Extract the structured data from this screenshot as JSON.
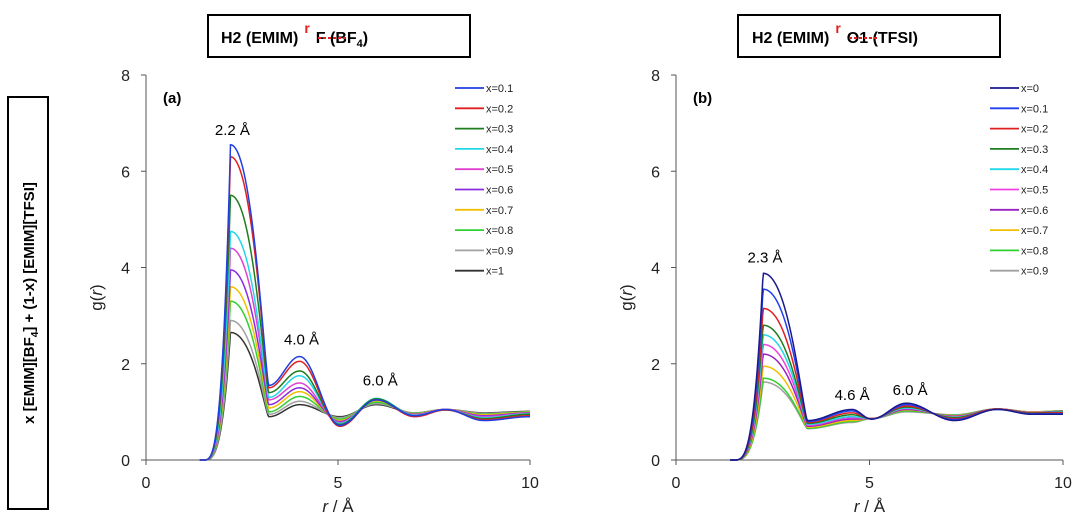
{
  "side_label": {
    "parts": [
      "x [EMIM][BF",
      "4",
      "] + (1-x) [EMIM][TFSI]"
    ]
  },
  "chart_data": [
    {
      "type": "line",
      "panel_label": "(a)",
      "title_parts": {
        "left": "H2 (EMIM)",
        "bond": "r",
        "right": "F (BF",
        "sub": "4",
        "close": ")"
      },
      "xlabel_parts": {
        "var": "r",
        "unit": " / Å"
      },
      "ylabel_parts": {
        "pre": "g(",
        "var": "r",
        "post": ")"
      },
      "xlim": [
        0,
        10
      ],
      "ylim": [
        0,
        8
      ],
      "xticks": [
        "0",
        "5",
        "10"
      ],
      "yticks": [
        "0",
        "2",
        "4",
        "6",
        "8"
      ],
      "legend_position": "top-right",
      "annotations": [
        {
          "text": "2.2 Å",
          "x": 2.25,
          "y": 6.75
        },
        {
          "text": "4.0 Å",
          "x": 4.05,
          "y": 2.4
        },
        {
          "text": "6.0 Å",
          "x": 6.1,
          "y": 1.55
        }
      ],
      "peaks": {
        "p1": 2.2,
        "m1": 3.2,
        "p2": 4.0,
        "m2": 5.05,
        "p3": 6.0,
        "m3": 7.0,
        "p4": 7.8,
        "m4": 8.8
      },
      "series": [
        {
          "name": "x=0.1",
          "color": "#1f3fe0",
          "values": {
            "p1": 6.55,
            "m1": 1.55,
            "p2": 2.15,
            "m2": 0.72,
            "p3": 1.25,
            "m3": 0.92,
            "p4": 1.05,
            "m4": 0.82,
            "end": 0.9
          }
        },
        {
          "name": "x=0.2",
          "color": "#e02020",
          "values": {
            "p1": 6.3,
            "m1": 1.5,
            "p2": 2.05,
            "m2": 0.7,
            "p3": 1.25,
            "m3": 0.9,
            "p4": 1.04,
            "m4": 0.84,
            "end": 0.92
          }
        },
        {
          "name": "x=0.3",
          "color": "#1e7d1e",
          "values": {
            "p1": 5.5,
            "m1": 1.4,
            "p2": 1.85,
            "m2": 0.74,
            "p3": 1.27,
            "m3": 0.92,
            "p4": 1.04,
            "m4": 0.86,
            "end": 0.95
          }
        },
        {
          "name": "x=0.4",
          "color": "#20d8e8",
          "values": {
            "p1": 4.75,
            "m1": 1.3,
            "p2": 1.75,
            "m2": 0.76,
            "p3": 1.28,
            "m3": 0.93,
            "p4": 1.04,
            "m4": 0.88,
            "end": 0.96
          }
        },
        {
          "name": "x=0.5",
          "color": "#e040d0",
          "values": {
            "p1": 4.4,
            "m1": 1.25,
            "p2": 1.6,
            "m2": 0.78,
            "p3": 1.27,
            "m3": 0.94,
            "p4": 1.05,
            "m4": 0.9,
            "end": 0.97
          }
        },
        {
          "name": "x=0.6",
          "color": "#8a2be2",
          "values": {
            "p1": 3.95,
            "m1": 1.15,
            "p2": 1.5,
            "m2": 0.8,
            "p3": 1.25,
            "m3": 0.95,
            "p4": 1.05,
            "m4": 0.92,
            "end": 0.98
          }
        },
        {
          "name": "x=0.7",
          "color": "#f0c000",
          "values": {
            "p1": 3.6,
            "m1": 1.08,
            "p2": 1.42,
            "m2": 0.82,
            "p3": 1.23,
            "m3": 0.96,
            "p4": 1.05,
            "m4": 0.94,
            "end": 0.99
          }
        },
        {
          "name": "x=0.8",
          "color": "#30d030",
          "values": {
            "p1": 3.3,
            "m1": 1.0,
            "p2": 1.32,
            "m2": 0.85,
            "p3": 1.2,
            "m3": 0.97,
            "p4": 1.05,
            "m4": 0.95,
            "end": 1.0
          }
        },
        {
          "name": "x=0.9",
          "color": "#a0a0a0",
          "values": {
            "p1": 2.9,
            "m1": 0.95,
            "p2": 1.22,
            "m2": 0.88,
            "p3": 1.17,
            "m3": 0.98,
            "p4": 1.05,
            "m4": 0.97,
            "end": 1.0
          }
        },
        {
          "name": "x=1",
          "color": "#333333",
          "values": {
            "p1": 2.65,
            "m1": 0.9,
            "p2": 1.15,
            "m2": 0.9,
            "p3": 1.15,
            "m3": 0.98,
            "p4": 1.05,
            "m4": 0.98,
            "end": 1.01
          }
        }
      ]
    },
    {
      "type": "line",
      "panel_label": "(b)",
      "title_parts": {
        "left": "H2 (EMIM)",
        "bond": "r",
        "right": "O1 (TFSI)",
        "sub": "",
        "close": ""
      },
      "xlabel_parts": {
        "var": "r",
        "unit": " / Å"
      },
      "ylabel_parts": {
        "pre": "g(",
        "var": "r",
        "post": ")"
      },
      "xlim": [
        0,
        10
      ],
      "ylim": [
        0,
        8
      ],
      "xticks": [
        "0",
        "5",
        "10"
      ],
      "yticks": [
        "0",
        "2",
        "4",
        "6",
        "8"
      ],
      "legend_position": "top-right",
      "annotations": [
        {
          "text": "2.3 Å",
          "x": 2.3,
          "y": 4.1
        },
        {
          "text": "4.6 Å",
          "x": 4.55,
          "y": 1.25
        },
        {
          "text": "6.0 Å",
          "x": 6.05,
          "y": 1.35
        }
      ],
      "peaks": {
        "p1": 2.25,
        "m1": 3.4,
        "p2": 4.55,
        "m2": 5.05,
        "p3": 5.95,
        "m3": 7.2,
        "p4": 8.3,
        "m4": 9.2
      },
      "series": [
        {
          "name": "x=0",
          "color": "#1a1a8c",
          "values": {
            "p1": 3.88,
            "m1": 0.82,
            "p2": 1.05,
            "m2": 0.85,
            "p3": 1.18,
            "m3": 0.82,
            "p4": 1.05,
            "m4": 0.95,
            "end": 0.95
          }
        },
        {
          "name": "x=0.1",
          "color": "#2040f0",
          "values": {
            "p1": 3.55,
            "m1": 0.8,
            "p2": 1.02,
            "m2": 0.85,
            "p3": 1.15,
            "m3": 0.84,
            "p4": 1.05,
            "m4": 0.96,
            "end": 0.96
          }
        },
        {
          "name": "x=0.2",
          "color": "#e02020",
          "values": {
            "p1": 3.15,
            "m1": 0.78,
            "p2": 0.98,
            "m2": 0.86,
            "p3": 1.12,
            "m3": 0.86,
            "p4": 1.06,
            "m4": 0.97,
            "end": 0.98
          }
        },
        {
          "name": "x=0.3",
          "color": "#1e7d1e",
          "values": {
            "p1": 2.8,
            "m1": 0.76,
            "p2": 0.94,
            "m2": 0.86,
            "p3": 1.1,
            "m3": 0.88,
            "p4": 1.06,
            "m4": 0.98,
            "end": 0.99
          }
        },
        {
          "name": "x=0.4",
          "color": "#20d8e8",
          "values": {
            "p1": 2.6,
            "m1": 0.74,
            "p2": 0.9,
            "m2": 0.86,
            "p3": 1.08,
            "m3": 0.89,
            "p4": 1.06,
            "m4": 0.98,
            "end": 1.0
          }
        },
        {
          "name": "x=0.5",
          "color": "#f040e0",
          "values": {
            "p1": 2.4,
            "m1": 0.72,
            "p2": 0.88,
            "m2": 0.86,
            "p3": 1.07,
            "m3": 0.9,
            "p4": 1.06,
            "m4": 0.99,
            "end": 1.0
          }
        },
        {
          "name": "x=0.6",
          "color": "#9a20c0",
          "values": {
            "p1": 2.2,
            "m1": 0.7,
            "p2": 0.85,
            "m2": 0.86,
            "p3": 1.05,
            "m3": 0.91,
            "p4": 1.06,
            "m4": 0.99,
            "end": 1.01
          }
        },
        {
          "name": "x=0.7",
          "color": "#f0c000",
          "values": {
            "p1": 1.95,
            "m1": 0.68,
            "p2": 0.82,
            "m2": 0.86,
            "p3": 1.04,
            "m3": 0.92,
            "p4": 1.06,
            "m4": 1.0,
            "end": 1.01
          }
        },
        {
          "name": "x=0.8",
          "color": "#30d030",
          "values": {
            "p1": 1.7,
            "m1": 0.66,
            "p2": 0.8,
            "m2": 0.86,
            "p3": 1.02,
            "m3": 0.93,
            "p4": 1.06,
            "m4": 1.0,
            "end": 1.02
          }
        },
        {
          "name": "x=0.9",
          "color": "#a0a0a0",
          "values": {
            "p1": 1.62,
            "m1": 0.65,
            "p2": 0.78,
            "m2": 0.86,
            "p3": 1.0,
            "m3": 0.94,
            "p4": 1.06,
            "m4": 1.0,
            "end": 1.02
          }
        }
      ]
    }
  ]
}
